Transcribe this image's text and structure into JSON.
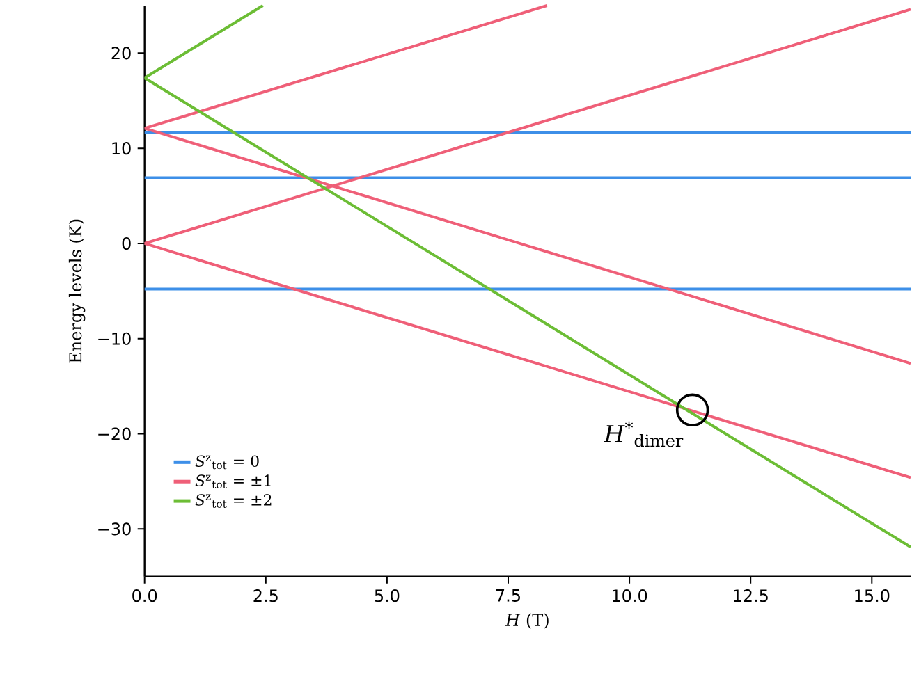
{
  "chart_data": {
    "type": "line",
    "xlabel": "*H* (T)",
    "ylabel": "Energy levels (K)",
    "xlim": [
      0,
      15.8
    ],
    "ylim": [
      -35,
      25
    ],
    "xticks": [
      {
        "value": 0,
        "label": "0.0"
      },
      {
        "value": 2.5,
        "label": "2.5"
      },
      {
        "value": 5,
        "label": "5.0"
      },
      {
        "value": 7.5,
        "label": "7.5"
      },
      {
        "value": 10,
        "label": "10.0"
      },
      {
        "value": 12.5,
        "label": "12.5"
      },
      {
        "value": 15,
        "label": "15.0"
      }
    ],
    "yticks": [
      {
        "value": -30,
        "label": "−30"
      },
      {
        "value": -20,
        "label": "−20"
      },
      {
        "value": -10,
        "label": "−10"
      },
      0,
      10,
      20
    ],
    "grid": false,
    "legend": "bottom left",
    "marker": "none",
    "line_style": "solid",
    "series": [
      {
        "name": "*S*$^{z}$$_{tot}$ = 0",
        "color": "#3d8fe8",
        "x": [
          0,
          15.8
        ],
        "values": [
          11.7,
          11.7
        ]
      },
      {
        "color": "#3d8fe8",
        "x": [
          0,
          15.8
        ],
        "values": [
          6.9,
          6.9
        ]
      },
      {
        "color": "#3d8fe8",
        "x": [
          0,
          15.8
        ],
        "values": [
          -4.8,
          -4.8
        ]
      },
      {
        "name": "*S*$^{z}$$_{tot}$ = ±1",
        "color": "#ef5f78",
        "x": [
          0,
          15.8
        ],
        "values": [
          0,
          -24.6
        ]
      },
      {
        "color": "#ef5f78",
        "x": [
          0,
          15.8
        ],
        "values": [
          0,
          24.6
        ]
      },
      {
        "color": "#ef5f78",
        "x": [
          0,
          15.8
        ],
        "values": [
          12.1,
          -12.6
        ]
      },
      {
        "color": "#ef5f78",
        "x": [
          0,
          8.3
        ],
        "values": [
          12.1,
          25
        ]
      },
      {
        "name": "*S*$^{z}$$_{tot}$ = ±2",
        "color": "#6cbd35",
        "x": [
          0,
          15.8
        ],
        "values": [
          17.4,
          -31.9
        ]
      },
      {
        "color": "#6cbd35",
        "x": [
          0,
          2.44
        ],
        "values": [
          17.4,
          25
        ]
      }
    ],
    "annotations": [
      {
        "text": "*H*$^{*}$$_{dimer}$",
        "x": 11.3,
        "y": -17.5
      }
    ]
  }
}
